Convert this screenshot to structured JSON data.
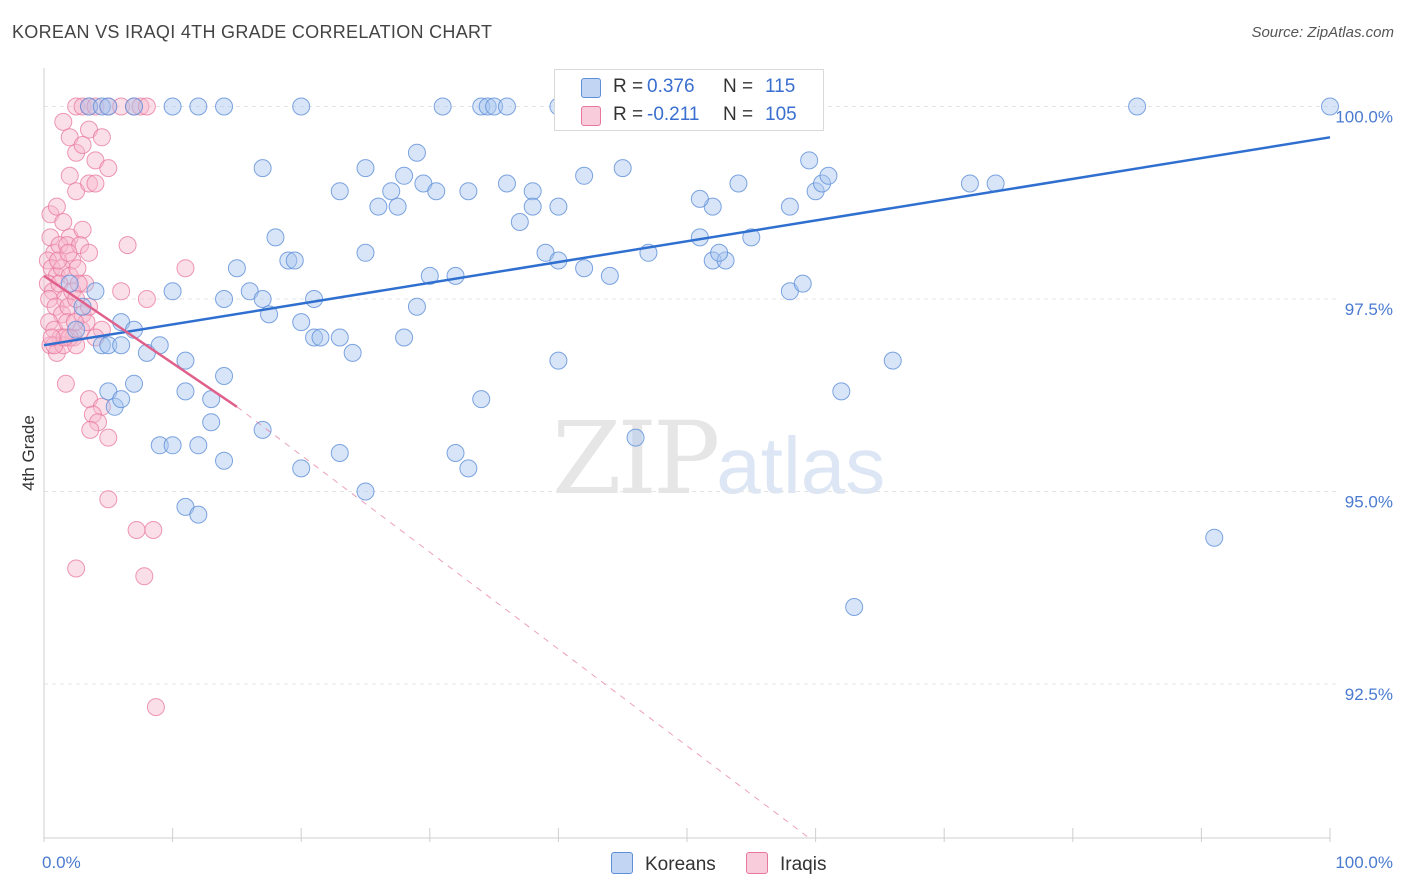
{
  "title": "KOREAN VS IRAQI 4TH GRADE CORRELATION CHART",
  "source": "Source: ZipAtlas.com",
  "watermark": {
    "zip": "ZIP",
    "atlas": "atlas"
  },
  "colors": {
    "koreans_fill": "#a9c6ef",
    "koreans_stroke": "#5e8fd8",
    "koreans_line": "#2f6fcf",
    "iraqis_fill": "#f6b9cd",
    "iraqis_stroke": "#e8779c",
    "iraqis_line": "#e0608c"
  },
  "legend": {
    "rows": [
      {
        "r_label": "R =",
        "r_value": "0.376",
        "n_label": "N =",
        "n_value": "115"
      },
      {
        "r_label": "R =",
        "r_value": "-0.211",
        "n_label": "N =",
        "n_value": "105"
      }
    ]
  },
  "bottom_legend": {
    "koreans": "Koreans",
    "iraqis": "Iraqis"
  },
  "chart_data": {
    "type": "scatter",
    "ylabel": "4th Grade",
    "xlabel": "",
    "xlim": [
      0,
      100
    ],
    "ylim": [
      90.5,
      100.5
    ],
    "x_tick_labels": {
      "left": "0.0%",
      "right": "100.0%"
    },
    "y_ticks": [
      {
        "value": 100.0,
        "label": "100.0%"
      },
      {
        "value": 97.5,
        "label": "97.5%"
      },
      {
        "value": 95.0,
        "label": "95.0%"
      },
      {
        "value": 92.5,
        "label": "92.5%"
      }
    ],
    "grid": true,
    "legend_position": "top-center",
    "series": [
      {
        "name": "Koreans",
        "r": 0.376,
        "n": 115,
        "trend": {
          "x": [
            0,
            100
          ],
          "y": [
            96.9,
            99.6
          ],
          "style": "solid"
        },
        "points": [
          [
            3.5,
            100
          ],
          [
            4.5,
            100
          ],
          [
            5,
            100
          ],
          [
            7,
            100
          ],
          [
            10,
            100
          ],
          [
            12,
            100
          ],
          [
            14,
            100
          ],
          [
            20,
            100
          ],
          [
            31,
            100
          ],
          [
            34,
            100
          ],
          [
            34.5,
            100
          ],
          [
            35,
            100
          ],
          [
            36,
            100
          ],
          [
            40,
            100
          ],
          [
            47,
            100
          ],
          [
            85,
            100
          ],
          [
            100,
            100
          ],
          [
            17,
            99.2
          ],
          [
            25,
            99.2
          ],
          [
            27,
            98.9
          ],
          [
            28,
            99.1
          ],
          [
            29.5,
            99.0
          ],
          [
            29,
            99.4
          ],
          [
            23,
            98.9
          ],
          [
            26,
            98.7
          ],
          [
            27.5,
            98.7
          ],
          [
            30.5,
            98.9
          ],
          [
            33,
            98.9
          ],
          [
            36,
            99.0
          ],
          [
            38,
            98.9
          ],
          [
            40,
            98.7
          ],
          [
            42,
            99.1
          ],
          [
            45,
            99.2
          ],
          [
            52,
            98.7
          ],
          [
            54,
            99.0
          ],
          [
            60,
            98.9
          ],
          [
            60.5,
            99.0
          ],
          [
            59.5,
            99.3
          ],
          [
            61,
            99.1
          ],
          [
            72,
            99.0
          ],
          [
            74,
            99.0
          ],
          [
            58,
            98.7
          ],
          [
            51,
            98.8
          ],
          [
            37,
            98.5
          ],
          [
            38,
            98.7
          ],
          [
            18,
            98.3
          ],
          [
            19,
            98.0
          ],
          [
            19.5,
            98.0
          ],
          [
            15,
            97.9
          ],
          [
            16,
            97.6
          ],
          [
            17,
            97.5
          ],
          [
            21,
            97.5
          ],
          [
            25,
            98.1
          ],
          [
            30,
            97.8
          ],
          [
            32,
            97.8
          ],
          [
            39,
            98.1
          ],
          [
            40,
            98.0
          ],
          [
            42,
            97.9
          ],
          [
            44,
            97.8
          ],
          [
            47,
            98.1
          ],
          [
            51,
            98.3
          ],
          [
            52,
            98.0
          ],
          [
            53,
            98.0
          ],
          [
            55,
            98.3
          ],
          [
            58,
            97.6
          ],
          [
            59,
            97.7
          ],
          [
            52.5,
            98.1
          ],
          [
            10,
            97.6
          ],
          [
            14,
            97.5
          ],
          [
            17.5,
            97.3
          ],
          [
            4,
            97.6
          ],
          [
            6,
            97.2
          ],
          [
            7,
            97.1
          ],
          [
            3,
            97.4
          ],
          [
            2.5,
            97.1
          ],
          [
            20,
            97.2
          ],
          [
            21,
            97.0
          ],
          [
            21.5,
            97.0
          ],
          [
            23,
            97.0
          ],
          [
            28,
            97.0
          ],
          [
            29,
            97.4
          ],
          [
            4.5,
            96.9
          ],
          [
            5,
            96.9
          ],
          [
            6,
            96.9
          ],
          [
            8,
            96.8
          ],
          [
            9,
            96.9
          ],
          [
            11,
            96.7
          ],
          [
            14,
            96.5
          ],
          [
            24,
            96.8
          ],
          [
            40,
            96.7
          ],
          [
            62,
            96.3
          ],
          [
            66,
            96.7
          ],
          [
            5,
            96.3
          ],
          [
            5.5,
            96.1
          ],
          [
            6,
            96.2
          ],
          [
            7,
            96.4
          ],
          [
            11,
            96.3
          ],
          [
            13,
            96.2
          ],
          [
            17,
            95.8
          ],
          [
            13,
            95.9
          ],
          [
            34,
            96.2
          ],
          [
            46,
            95.7
          ],
          [
            9,
            95.6
          ],
          [
            10,
            95.6
          ],
          [
            12,
            95.6
          ],
          [
            14,
            95.4
          ],
          [
            20,
            95.3
          ],
          [
            23,
            95.5
          ],
          [
            32,
            95.5
          ],
          [
            33,
            95.3
          ],
          [
            25,
            95.0
          ],
          [
            11,
            94.8
          ],
          [
            12,
            94.7
          ],
          [
            91,
            94.4
          ],
          [
            63,
            93.5
          ],
          [
            2,
            97.7
          ]
        ]
      },
      {
        "name": "Iraqis",
        "r": -0.211,
        "n": 105,
        "trend": {
          "x": [
            0,
            15
          ],
          "y": [
            97.8,
            96.1
          ],
          "style": "solid",
          "extended": {
            "x": [
              15,
              59.5
            ],
            "y": [
              96.1,
              90.5
            ],
            "style": "dashed"
          }
        },
        "points": [
          [
            2.5,
            100
          ],
          [
            3,
            100
          ],
          [
            3.5,
            100
          ],
          [
            4,
            100
          ],
          [
            5,
            100
          ],
          [
            6,
            100
          ],
          [
            7,
            100
          ],
          [
            7.5,
            100
          ],
          [
            8,
            100
          ],
          [
            1.5,
            99.8
          ],
          [
            2,
            99.6
          ],
          [
            3.5,
            99.7
          ],
          [
            4.5,
            99.6
          ],
          [
            2.5,
            99.4
          ],
          [
            3,
            99.5
          ],
          [
            4,
            99.3
          ],
          [
            5,
            99.2
          ],
          [
            2,
            99.1
          ],
          [
            2.5,
            98.9
          ],
          [
            3.5,
            99.0
          ],
          [
            4,
            99.0
          ],
          [
            0.5,
            98.6
          ],
          [
            1,
            98.7
          ],
          [
            1.5,
            98.5
          ],
          [
            2,
            98.3
          ],
          [
            3,
            98.4
          ],
          [
            0.5,
            98.3
          ],
          [
            0.8,
            98.1
          ],
          [
            1.2,
            98.2
          ],
          [
            1.8,
            98.2
          ],
          [
            2.2,
            98.0
          ],
          [
            2.8,
            98.2
          ],
          [
            3.5,
            98.1
          ],
          [
            6.5,
            98.2
          ],
          [
            0.3,
            98.0
          ],
          [
            0.6,
            97.9
          ],
          [
            1,
            97.8
          ],
          [
            1.4,
            97.9
          ],
          [
            2,
            97.8
          ],
          [
            2.6,
            97.9
          ],
          [
            3.2,
            97.7
          ],
          [
            11,
            97.9
          ],
          [
            0.3,
            97.7
          ],
          [
            0.7,
            97.6
          ],
          [
            1.2,
            97.7
          ],
          [
            1.6,
            97.5
          ],
          [
            2.2,
            97.6
          ],
          [
            2.7,
            97.7
          ],
          [
            0.4,
            97.5
          ],
          [
            0.9,
            97.4
          ],
          [
            1.4,
            97.3
          ],
          [
            1.9,
            97.4
          ],
          [
            2.5,
            97.5
          ],
          [
            3,
            97.3
          ],
          [
            6,
            97.6
          ],
          [
            8,
            97.5
          ],
          [
            0.4,
            97.2
          ],
          [
            0.8,
            97.1
          ],
          [
            1.3,
            97.0
          ],
          [
            1.8,
            97.2
          ],
          [
            2.3,
            97.0
          ],
          [
            2.9,
            97.1
          ],
          [
            0.5,
            96.9
          ],
          [
            1,
            96.8
          ],
          [
            1.5,
            96.9
          ],
          [
            2,
            97.0
          ],
          [
            2.5,
            96.9
          ],
          [
            4.5,
            97.1
          ],
          [
            3.3,
            97.2
          ],
          [
            3.5,
            97.4
          ],
          [
            1.7,
            96.4
          ],
          [
            3.5,
            96.2
          ],
          [
            4.5,
            96.1
          ],
          [
            3.8,
            96.0
          ],
          [
            4.2,
            95.9
          ],
          [
            3.6,
            95.8
          ],
          [
            5,
            95.7
          ],
          [
            0.8,
            96.9
          ],
          [
            1.6,
            97.0
          ],
          [
            5,
            94.9
          ],
          [
            7.2,
            94.5
          ],
          [
            8.5,
            94.5
          ],
          [
            2.5,
            94.0
          ],
          [
            7.8,
            93.9
          ],
          [
            8.7,
            92.2
          ],
          [
            4,
            97.0
          ],
          [
            1.1,
            98.0
          ],
          [
            1.9,
            98.1
          ],
          [
            0.6,
            97.0
          ],
          [
            2.4,
            97.2
          ]
        ]
      }
    ]
  }
}
